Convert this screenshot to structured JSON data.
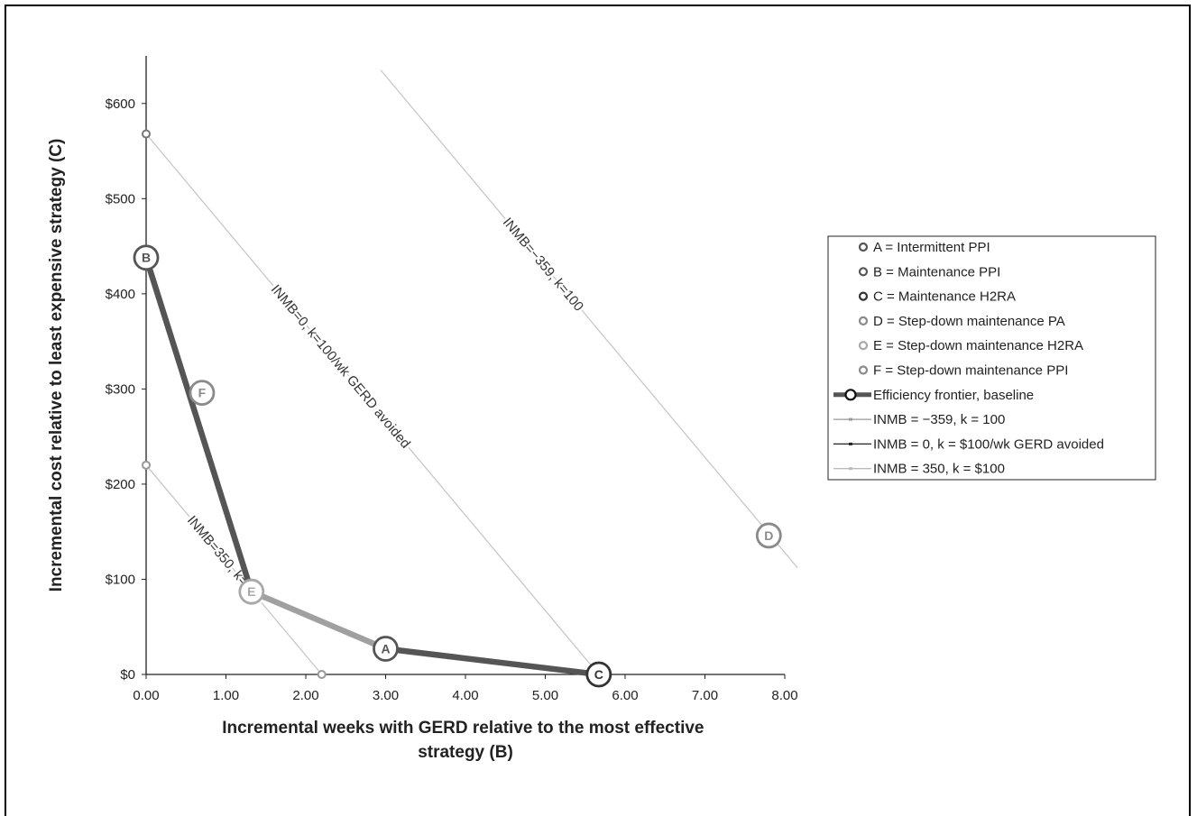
{
  "chart_data": {
    "type": "line",
    "xlabel_lines": [
      "Incremental weeks with GERD relative to the most effective",
      "strategy (B)"
    ],
    "ylabel": "Incremental cost relative to least expensive strategy (C)",
    "xlim": [
      0,
      8
    ],
    "ylim": [
      0,
      650
    ],
    "x_ticks": [
      0,
      1,
      2,
      3,
      4,
      5,
      6,
      7,
      8
    ],
    "x_tick_labels": [
      "0.00",
      "1.00",
      "2.00",
      "3.00",
      "4.00",
      "5.00",
      "6.00",
      "7.00",
      "8.00"
    ],
    "y_ticks": [
      0,
      100,
      200,
      300,
      400,
      500,
      600
    ],
    "y_tick_labels": [
      "$0",
      "$100",
      "$200",
      "$300",
      "$400",
      "$500",
      "$600"
    ],
    "grid": false,
    "legend_position": "right",
    "strategies": [
      {
        "id": "A",
        "legend": "A = Intermittent PPI",
        "x": 3.0,
        "y": 27,
        "color": "#555555"
      },
      {
        "id": "B",
        "legend": "B = Maintenance PPI",
        "x": 0.0,
        "y": 438,
        "color": "#555555"
      },
      {
        "id": "C",
        "legend": "C = Maintenance H2RA",
        "x": 5.67,
        "y": 0,
        "color": "#333333"
      },
      {
        "id": "D",
        "legend": "D = Step-down maintenance PA",
        "x": 7.8,
        "y": 146,
        "color": "#8a8a8a"
      },
      {
        "id": "E",
        "legend": "E = Step-down maintenance H2RA",
        "x": 1.32,
        "y": 87,
        "color": "#a8a8a8"
      },
      {
        "id": "F",
        "legend": "F = Step-down maintenance PPI",
        "x": 0.7,
        "y": 296,
        "color": "#8a8a8a"
      }
    ],
    "frontier": {
      "legend": "Efficiency frontier, baseline",
      "segments": [
        {
          "from": "B",
          "to": "E",
          "color": "#555555"
        },
        {
          "from": "E",
          "to": "A",
          "color": "#a0a0a0"
        },
        {
          "from": "A",
          "to": "C",
          "color": "#555555"
        }
      ]
    },
    "inmb_lines": [
      {
        "legend": "INMB = −359, k = 100",
        "label": "INMB=−359, k=100",
        "x": [
          2.94,
          8.16
        ],
        "y": [
          635,
          112
        ],
        "legend_color": "#999999"
      },
      {
        "legend": "INMB = 0, k = $100/wk GERD avoided",
        "label": "INMB=0, k=100/wk GERD avoided",
        "x": [
          0.0,
          5.67
        ],
        "y": [
          568,
          0
        ],
        "legend_color": "#222222"
      },
      {
        "legend": "INMB = 350, k = $100",
        "label": "INMB=350, k=100",
        "x": [
          0.0,
          2.2
        ],
        "y": [
          220,
          0
        ],
        "legend_color": "#bbbbbb"
      }
    ],
    "small_points": [
      {
        "x": 0.0,
        "y": 568,
        "color": "#777777"
      },
      {
        "x": 0.0,
        "y": 220,
        "color": "#999999"
      },
      {
        "x": 2.2,
        "y": 0,
        "color": "#999999"
      }
    ]
  }
}
